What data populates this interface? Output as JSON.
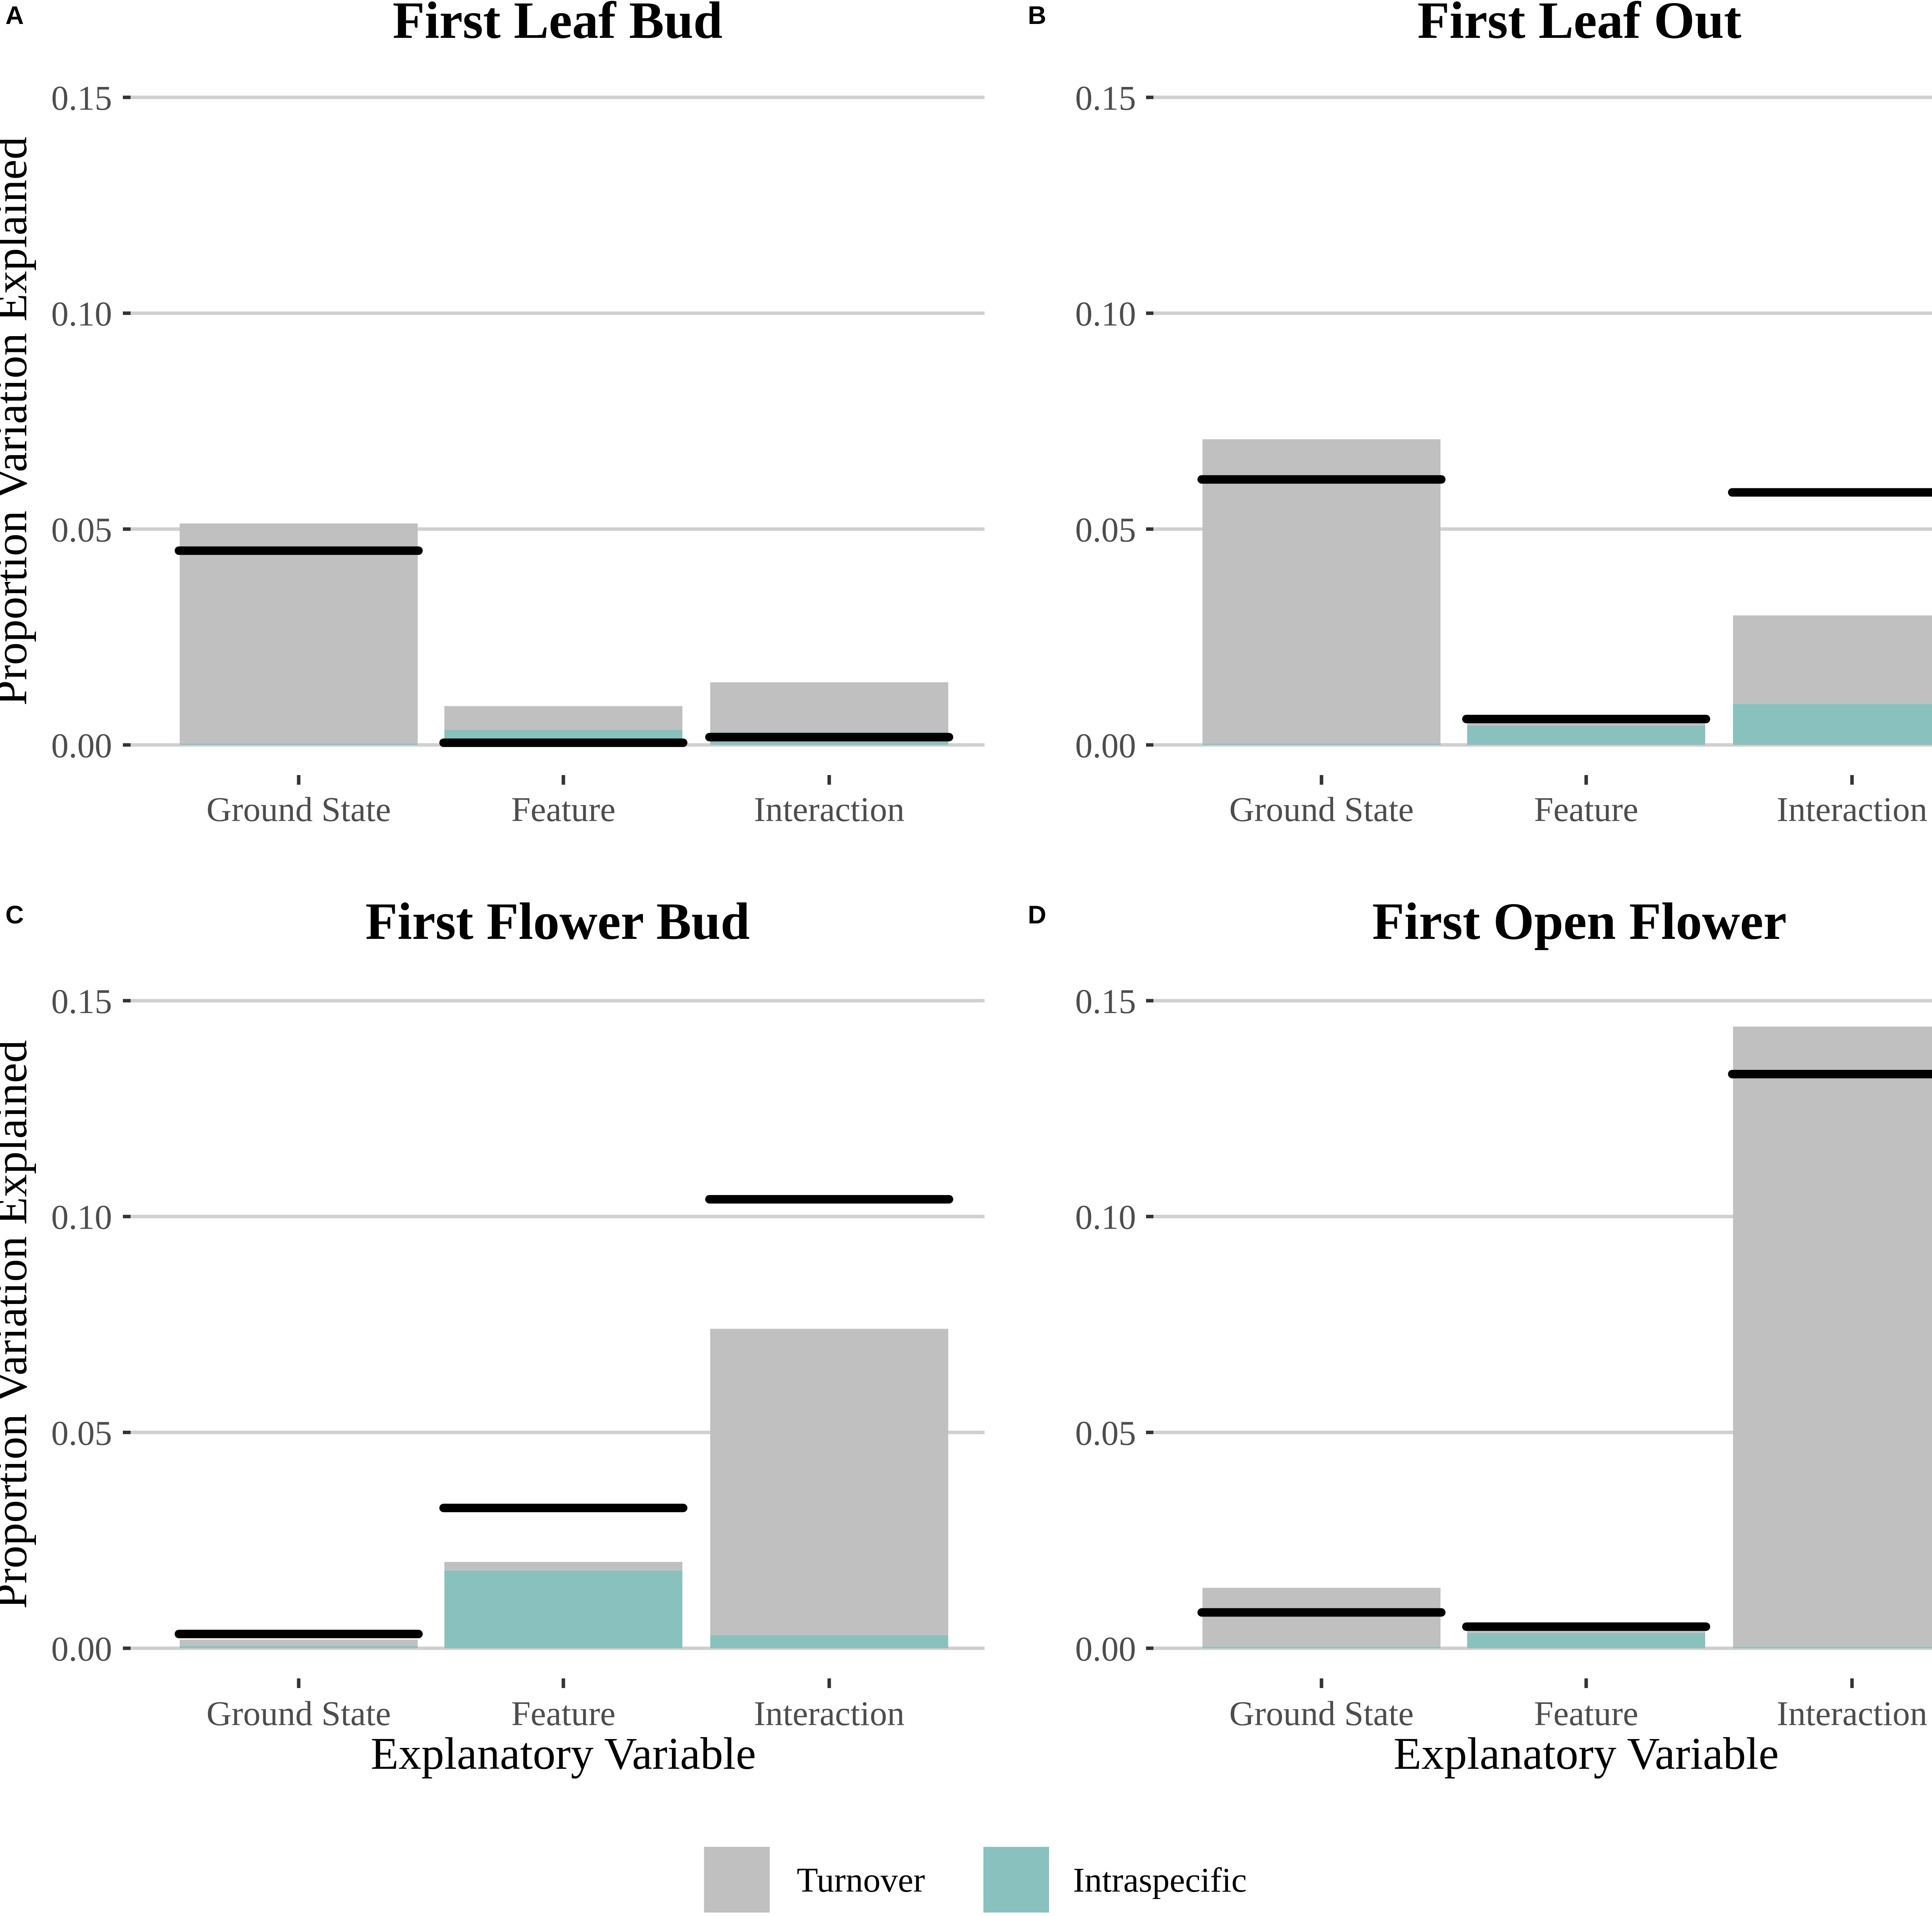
{
  "figure": {
    "colors": {
      "turnover": "#c0c0c0",
      "intraspecific": "#89c1be",
      "total_line": "#000000",
      "grid": "#d0d0d0",
      "tick": "#333333",
      "tick_label": "#4d4d4d"
    },
    "legend": {
      "items": [
        {
          "name": "Turnover",
          "color_key": "turnover"
        },
        {
          "name": "Intraspecific",
          "color_key": "intraspecific"
        }
      ]
    }
  },
  "chart_data": [
    {
      "panel": "A",
      "title": "First Leaf Bud",
      "type": "bar",
      "stacked": true,
      "xlabel": "",
      "ylabel": "Proportion Variation Explained",
      "ylim": [
        0,
        0.15
      ],
      "yticks": [
        "0.00",
        "0.05",
        "0.10",
        "0.15"
      ],
      "categories": [
        "Ground State",
        "Feature",
        "Interaction"
      ],
      "series": [
        {
          "name": "Intraspecific",
          "values": [
            0.0003,
            0.0035,
            0.003
          ]
        },
        {
          "name": "Turnover",
          "values": [
            0.051,
            0.0055,
            0.0115
          ]
        }
      ],
      "total_lines": [
        0.045,
        0.0005,
        0.0018
      ]
    },
    {
      "panel": "B",
      "title": "First Leaf Out",
      "type": "bar",
      "stacked": true,
      "xlabel": "",
      "ylabel": "",
      "ylim": [
        0,
        0.15
      ],
      "yticks": [
        "0.00",
        "0.05",
        "0.10",
        "0.15"
      ],
      "categories": [
        "Ground State",
        "Feature",
        "Interaction"
      ],
      "series": [
        {
          "name": "Intraspecific",
          "values": [
            0.0003,
            0.0045,
            0.0095
          ]
        },
        {
          "name": "Turnover",
          "values": [
            0.0705,
            0.0005,
            0.0205
          ]
        }
      ],
      "total_lines": [
        0.0615,
        0.006,
        0.0585
      ]
    },
    {
      "panel": "C",
      "title": "First Flower Bud",
      "type": "bar",
      "stacked": true,
      "xlabel": "Explanatory Variable",
      "ylabel": "Proportion Variation Explained",
      "ylim": [
        0,
        0.15
      ],
      "yticks": [
        "0.00",
        "0.05",
        "0.10",
        "0.15"
      ],
      "categories": [
        "Ground State",
        "Feature",
        "Interaction"
      ],
      "series": [
        {
          "name": "Intraspecific",
          "values": [
            0.0005,
            0.018,
            0.003
          ]
        },
        {
          "name": "Turnover",
          "values": [
            0.0015,
            0.002,
            0.071
          ]
        }
      ],
      "total_lines": [
        0.0033,
        0.0325,
        0.104
      ]
    },
    {
      "panel": "D",
      "title": "First Open Flower",
      "type": "bar",
      "stacked": true,
      "xlabel": "Explanatory Variable",
      "ylabel": "",
      "ylim": [
        0,
        0.15
      ],
      "yticks": [
        "0.00",
        "0.05",
        "0.10",
        "0.15"
      ],
      "categories": [
        "Ground State",
        "Feature",
        "Interaction"
      ],
      "series": [
        {
          "name": "Intraspecific",
          "values": [
            0.0003,
            0.0035,
            0.0003
          ]
        },
        {
          "name": "Turnover",
          "values": [
            0.0137,
            0.0005,
            0.1437
          ]
        }
      ],
      "total_lines": [
        0.0083,
        0.005,
        0.133
      ]
    }
  ]
}
